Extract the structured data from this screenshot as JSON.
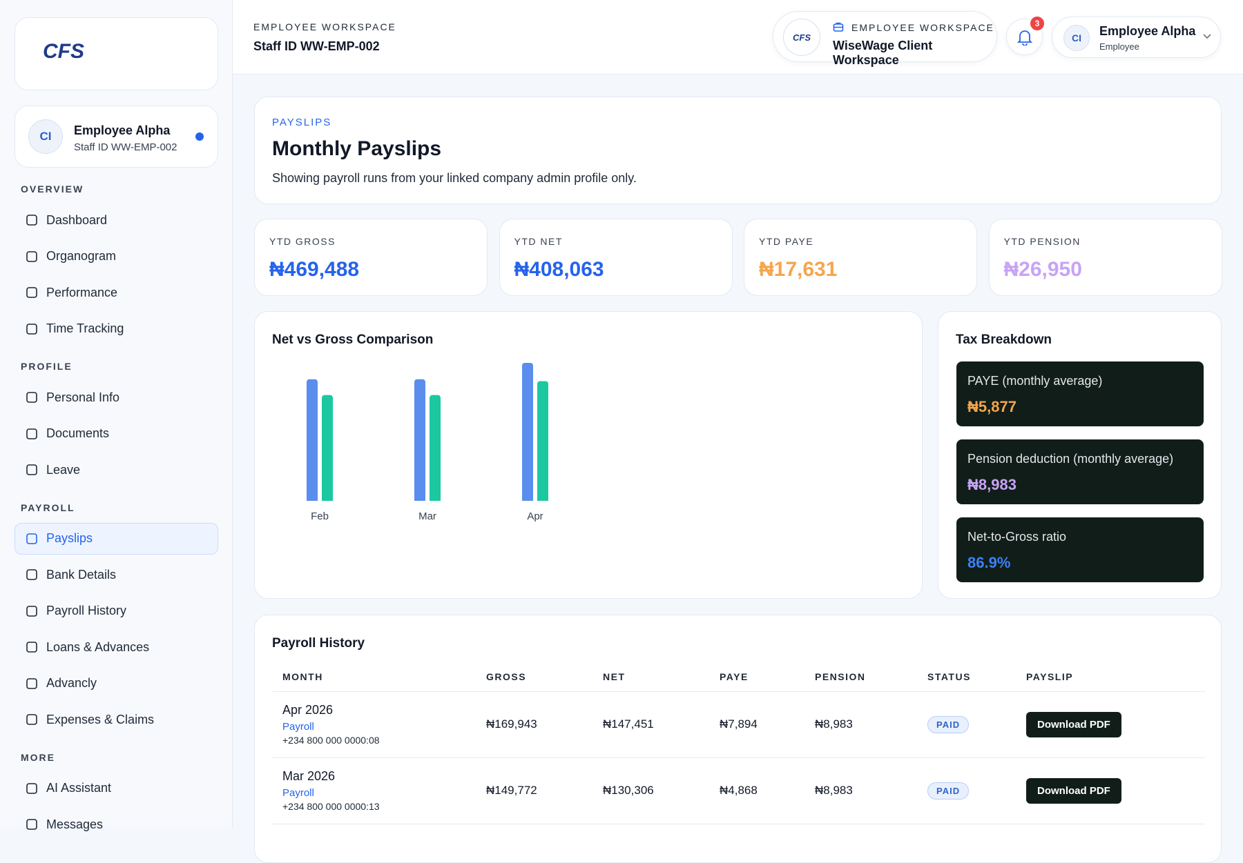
{
  "sidebar": {
    "logo": "CFS",
    "profile": {
      "initials": "CI",
      "name": "Employee Alpha",
      "staff_id": "Staff ID WW-EMP-002"
    },
    "sections": [
      {
        "title": "OVERVIEW",
        "items": [
          {
            "label": "Dashboard"
          },
          {
            "label": "Organogram"
          },
          {
            "label": "Performance"
          },
          {
            "label": "Time Tracking"
          }
        ]
      },
      {
        "title": "PROFILE",
        "items": [
          {
            "label": "Personal Info"
          },
          {
            "label": "Documents"
          },
          {
            "label": "Leave"
          }
        ]
      },
      {
        "title": "PAYROLL",
        "items": [
          {
            "label": "Payslips",
            "active": true
          },
          {
            "label": "Bank Details"
          },
          {
            "label": "Payroll History"
          },
          {
            "label": "Loans & Advances"
          },
          {
            "label": "Advancly"
          },
          {
            "label": "Expenses & Claims"
          }
        ]
      },
      {
        "title": "MORE",
        "items": [
          {
            "label": "AI Assistant"
          },
          {
            "label": "Messages"
          }
        ]
      }
    ]
  },
  "header": {
    "eyebrow": "EMPLOYEE WORKSPACE",
    "staff_id": "Staff ID WW-EMP-002",
    "workspace_logo": "CFS",
    "workspace_label": "EMPLOYEE WORKSPACE",
    "workspace_name": "WiseWage Client Workspace",
    "notifications": 3,
    "user": {
      "initials": "CI",
      "name": "Employee Alpha",
      "role": "Employee"
    }
  },
  "intro": {
    "eyebrow": "PAYSLIPS",
    "title": "Monthly Payslips",
    "subtitle": "Showing payroll runs from your linked company admin profile only."
  },
  "stats": [
    {
      "label": "YTD GROSS",
      "value": "₦469,488",
      "color": "#2563eb"
    },
    {
      "label": "YTD NET",
      "value": "₦408,063",
      "color": "#2563eb"
    },
    {
      "label": "YTD PAYE",
      "value": "₦17,631",
      "color": "#f6a54c"
    },
    {
      "label": "YTD PENSION",
      "value": "₦26,950",
      "color": "#c7a3f5"
    }
  ],
  "chart_data": {
    "type": "bar",
    "title": "Net vs Gross Comparison",
    "categories": [
      "Feb",
      "Mar",
      "Apr"
    ],
    "series": [
      {
        "color": "#5b8def",
        "values": [
          149773,
          149772,
          169943
        ]
      },
      {
        "color": "#1cc8a0",
        "values": [
          130306,
          130306,
          147451
        ]
      }
    ]
  },
  "tax": {
    "title": "Tax Breakdown",
    "items": [
      {
        "label": "PAYE (monthly average)",
        "value": "₦5,877",
        "color": "#f6a54c"
      },
      {
        "label": "Pension deduction (monthly average)",
        "value": "₦8,983",
        "color": "#c7a3f5"
      },
      {
        "label": "Net-to-Gross ratio",
        "value": "86.9%",
        "color": "#3b82f6"
      }
    ]
  },
  "table": {
    "title": "Payroll History",
    "columns": [
      "MONTH",
      "GROSS",
      "NET",
      "PAYE",
      "PENSION",
      "STATUS",
      "PAYSLIP"
    ],
    "rows": [
      {
        "month": "Apr 2026",
        "type": "Payroll",
        "ref": "+234 800 000 0000:08",
        "gross": "₦169,943",
        "net": "₦147,451",
        "paye": "₦7,894",
        "pension": "₦8,983",
        "status": "PAID",
        "action": "Download PDF"
      },
      {
        "month": "Mar 2026",
        "type": "Payroll",
        "ref": "+234 800 000 0000:13",
        "gross": "₦149,772",
        "net": "₦130,306",
        "paye": "₦4,868",
        "pension": "₦8,983",
        "status": "PAID",
        "action": "Download PDF"
      }
    ]
  }
}
